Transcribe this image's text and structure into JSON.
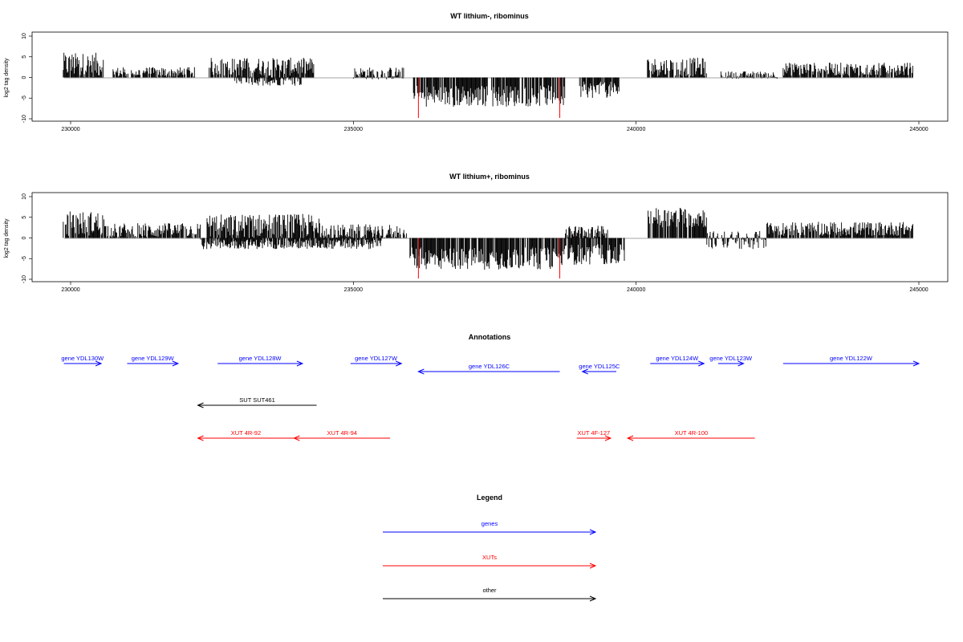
{
  "chart_data": [
    {
      "type": "bar",
      "title": "WT lithium-, ribominus",
      "ylabel": "log2 tag density",
      "xlim": [
        230000,
        245000
      ],
      "ylim": [
        -10,
        10
      ],
      "xticks": [
        "230000",
        "235000",
        "240000",
        "245000"
      ],
      "yticks": [
        "10",
        "5",
        "0",
        "-5",
        "-10"
      ],
      "markers": [
        236150,
        238650
      ],
      "series": [
        {
          "regions": [
            {
              "start": 229870,
              "end": 230580,
              "mean": 3.0,
              "spread": 3.0,
              "sign": 1
            },
            {
              "start": 230750,
              "end": 232200,
              "mean": 1.2,
              "spread": 1.3,
              "sign": 1
            },
            {
              "start": 232450,
              "end": 234300,
              "mean": 2.6,
              "spread": 2.2,
              "sign": 1
            },
            {
              "start": 232900,
              "end": 234100,
              "mean": -0.8,
              "spread": 1.2,
              "sign": 1
            },
            {
              "start": 235000,
              "end": 235900,
              "mean": 1.0,
              "spread": 1.5,
              "sign": 1
            },
            {
              "start": 236050,
              "end": 238750,
              "mean": -4.5,
              "spread": 2.6,
              "sign": 1
            },
            {
              "start": 239000,
              "end": 239700,
              "mean": -3.0,
              "spread": 2.0,
              "sign": 1
            },
            {
              "start": 240200,
              "end": 241250,
              "mean": 2.5,
              "spread": 2.3,
              "sign": 1
            },
            {
              "start": 241500,
              "end": 242500,
              "mean": 0.6,
              "spread": 0.9,
              "sign": 1
            },
            {
              "start": 242600,
              "end": 244900,
              "mean": 2.0,
              "spread": 1.6,
              "sign": 1
            }
          ]
        }
      ]
    },
    {
      "type": "bar",
      "title": "WT lithium+, ribominus",
      "ylabel": "log2 tag density",
      "xlim": [
        230000,
        245000
      ],
      "ylim": [
        -10,
        10
      ],
      "xticks": [
        "230000",
        "235000",
        "240000",
        "245000"
      ],
      "yticks": [
        "10",
        "5",
        "0",
        "-5",
        "-10"
      ],
      "markers": [
        236150,
        238650
      ],
      "series": [
        {
          "regions": [
            {
              "start": 229870,
              "end": 230600,
              "mean": 3.5,
              "spread": 3.0,
              "sign": 1
            },
            {
              "start": 230600,
              "end": 232300,
              "mean": 1.8,
              "spread": 1.8,
              "sign": 1
            },
            {
              "start": 232400,
              "end": 234500,
              "mean": 3.0,
              "spread": 2.8,
              "sign": 1
            },
            {
              "start": 232300,
              "end": 235500,
              "mean": -1.5,
              "spread": 1.2,
              "sign": 1
            },
            {
              "start": 234500,
              "end": 235950,
              "mean": 1.5,
              "spread": 1.8,
              "sign": 1
            },
            {
              "start": 236000,
              "end": 238700,
              "mean": -5.0,
              "spread": 2.7,
              "sign": 1
            },
            {
              "start": 238700,
              "end": 239800,
              "mean": -4.0,
              "spread": 2.5,
              "sign": 1
            },
            {
              "start": 238750,
              "end": 239500,
              "mean": 1.5,
              "spread": 1.5,
              "sign": 1
            },
            {
              "start": 240200,
              "end": 241250,
              "mean": 5.0,
              "spread": 2.5,
              "sign": 1
            },
            {
              "start": 241250,
              "end": 242300,
              "mean": -0.5,
              "spread": 2.2,
              "sign": 1
            },
            {
              "start": 242300,
              "end": 244900,
              "mean": 2.2,
              "spread": 1.7,
              "sign": 1
            }
          ]
        }
      ]
    }
  ],
  "annotations": {
    "title": "Annotations",
    "items": [
      {
        "label": "gene YDL130W",
        "start": 229880,
        "end": 230540,
        "dir": 1,
        "color": "#0000ff",
        "row": 0
      },
      {
        "label": "gene YDL129W",
        "start": 231000,
        "end": 231900,
        "dir": 1,
        "color": "#0000ff",
        "row": 0
      },
      {
        "label": "gene YDL128W",
        "start": 232600,
        "end": 234100,
        "dir": 1,
        "color": "#0000ff",
        "row": 0
      },
      {
        "label": "gene YDL127W",
        "start": 234950,
        "end": 235850,
        "dir": 1,
        "color": "#0000ff",
        "row": 0
      },
      {
        "label": "gene YDL126C",
        "start": 236150,
        "end": 238650,
        "dir": -1,
        "color": "#0000ff",
        "row": 1
      },
      {
        "label": "gene YDL125C",
        "start": 239050,
        "end": 239650,
        "dir": -1,
        "color": "#0000ff",
        "row": 1
      },
      {
        "label": "gene YDL124W",
        "start": 240250,
        "end": 241200,
        "dir": 1,
        "color": "#0000ff",
        "row": 0
      },
      {
        "label": "gene YDL123W",
        "start": 241450,
        "end": 241900,
        "dir": 1,
        "color": "#0000ff",
        "row": 0
      },
      {
        "label": "gene YDL122W",
        "start": 242600,
        "end": 245000,
        "dir": 1,
        "color": "#0000ff",
        "row": 0
      },
      {
        "label": "SUT SUT461",
        "start": 232250,
        "end": 234350,
        "dir": -1,
        "color": "#000000",
        "row": 2
      },
      {
        "label": "XUT 4R-92",
        "start": 232250,
        "end": 233950,
        "dir": -1,
        "color": "#ff0000",
        "row": 3
      },
      {
        "label": "XUT 4R-94",
        "start": 233950,
        "end": 235650,
        "dir": -1,
        "color": "#ff0000",
        "row": 3
      },
      {
        "label": "XUT 4F-127",
        "start": 238950,
        "end": 239550,
        "dir": 1,
        "color": "#ff0000",
        "row": 3
      },
      {
        "label": "XUT 4R-100",
        "start": 239850,
        "end": 242100,
        "dir": -1,
        "color": "#ff0000",
        "row": 3
      }
    ]
  },
  "legend": {
    "title": "Legend",
    "items": [
      {
        "label": "genes",
        "color": "#0000ff"
      },
      {
        "label": "XUTs",
        "color": "#ff0000"
      },
      {
        "label": "other",
        "color": "#000000"
      }
    ]
  }
}
